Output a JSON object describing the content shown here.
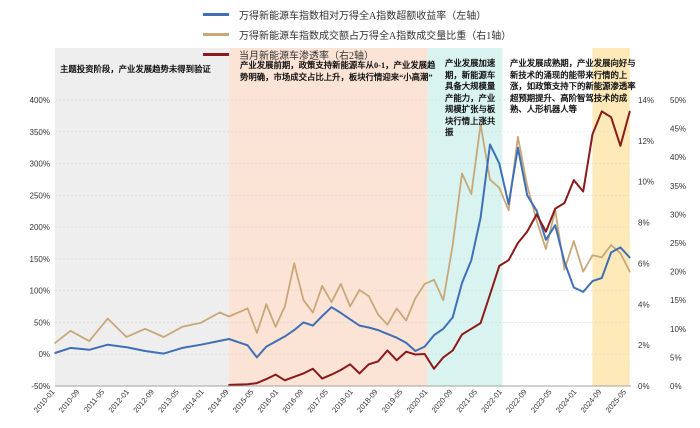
{
  "chart_data": {
    "type": "line",
    "legend": [
      {
        "name": "万得新能源车指数相对万得全A指数超额收益率（左轴）",
        "color": "#3f6fb6"
      },
      {
        "name": "万得新能源车指数成交额占万得全A指数成交量比重（右1轴）",
        "color": "#c8a878"
      },
      {
        "name": "当月新能源车渗透率（右2轴）",
        "color": "#8b1a1a"
      }
    ],
    "x_tick_labels": [
      "2010-01",
      "2010-09",
      "2011-05",
      "2012-01",
      "2012-09",
      "2013-05",
      "2014-01",
      "2014-09",
      "2015-05",
      "2016-01",
      "2016-09",
      "2017-05",
      "2018-01",
      "2018-09",
      "2019-05",
      "2020-01",
      "2020-09",
      "2021-05",
      "2022-01",
      "2022-09",
      "2023-05",
      "2024-01",
      "2024-09",
      "2025-05"
    ],
    "left_axis": {
      "ticks": [
        "-50%",
        "0%",
        "50%",
        "100%",
        "150%",
        "200%",
        "250%",
        "300%",
        "350%",
        "400%"
      ],
      "range": [
        -50,
        400
      ]
    },
    "right1_axis": {
      "ticks": [
        "0%",
        "2%",
        "4%",
        "6%",
        "8%",
        "10%",
        "12%",
        "14%"
      ],
      "range": [
        0,
        14
      ]
    },
    "right2_axis": {
      "ticks": [
        "0%",
        "5%",
        "10%",
        "15%",
        "20%",
        "25%",
        "30%",
        "35%",
        "40%",
        "45%",
        "50%"
      ],
      "range": [
        0,
        50
      ]
    },
    "phases": [
      {
        "start": "2010-01",
        "end": "2014-09",
        "color": "#eeeeee",
        "label": "主题投资阶段，产业发展趋势未得到验证"
      },
      {
        "start": "2014-09",
        "end": "2020-01",
        "color": "#fbe3d6",
        "label": "产业发展前期，政策支持新能源车从0-1，产业发展趋势明确，市场成交占比上升，板块行情迎来“小高潮”"
      },
      {
        "start": "2020-01",
        "end": "2022-01",
        "color": "#d9f3f0",
        "label": "产业发展加速期，新能源车具备大规模量产能力，产业规模扩张与板块行情上涨共振"
      },
      {
        "start": "2024-06",
        "end": "2025-06",
        "color": "#fdeab8",
        "label": "产业发展成熟期，产业发展向好与新技术的涌现的能带来行情的上涨，如政策支持下的新能源渗透率超预期提升、高阶智驾技术的成熟、人形机器人等"
      }
    ],
    "series": [
      {
        "name": "万得新能源车指数相对万得全A指数超额收益率（左轴）",
        "axis": "left",
        "x": [
          "2010-01",
          "2010-06",
          "2010-12",
          "2011-06",
          "2011-12",
          "2012-06",
          "2012-12",
          "2013-06",
          "2013-12",
          "2014-06",
          "2014-09",
          "2015-03",
          "2015-06",
          "2015-09",
          "2015-12",
          "2016-03",
          "2016-06",
          "2016-09",
          "2016-12",
          "2017-03",
          "2017-06",
          "2017-09",
          "2017-12",
          "2018-03",
          "2018-06",
          "2018-09",
          "2018-12",
          "2019-03",
          "2019-06",
          "2019-09",
          "2019-12",
          "2020-03",
          "2020-06",
          "2020-09",
          "2020-12",
          "2021-03",
          "2021-06",
          "2021-09",
          "2021-12",
          "2022-03",
          "2022-06",
          "2022-09",
          "2022-12",
          "2023-03",
          "2023-06",
          "2023-09",
          "2023-12",
          "2024-03",
          "2024-06",
          "2024-09",
          "2024-12",
          "2025-03",
          "2025-06"
        ],
        "values": [
          2,
          10,
          7,
          15,
          11,
          5,
          1,
          10,
          15,
          21,
          24,
          14,
          -5,
          12,
          20,
          28,
          38,
          50,
          45,
          60,
          74,
          65,
          55,
          45,
          42,
          38,
          32,
          26,
          18,
          5,
          12,
          30,
          40,
          58,
          112,
          148,
          215,
          330,
          300,
          236,
          325,
          250,
          226,
          180,
          203,
          145,
          105,
          98,
          115,
          120,
          160,
          168,
          152
        ]
      },
      {
        "name": "万得新能源车指数成交额占万得全A指数成交量比重（右1轴）",
        "axis": "right1",
        "x": [
          "2010-01",
          "2010-06",
          "2010-12",
          "2011-06",
          "2011-12",
          "2012-06",
          "2012-12",
          "2013-06",
          "2013-12",
          "2014-06",
          "2014-09",
          "2015-03",
          "2015-06",
          "2015-09",
          "2015-12",
          "2016-03",
          "2016-06",
          "2016-09",
          "2016-12",
          "2017-03",
          "2017-06",
          "2017-09",
          "2017-12",
          "2018-03",
          "2018-06",
          "2018-09",
          "2018-12",
          "2019-03",
          "2019-06",
          "2019-09",
          "2019-12",
          "2020-03",
          "2020-06",
          "2020-09",
          "2020-12",
          "2021-03",
          "2021-06",
          "2021-09",
          "2021-12",
          "2022-03",
          "2022-06",
          "2022-09",
          "2022-12",
          "2023-03",
          "2023-06",
          "2023-09",
          "2023-12",
          "2024-03",
          "2024-06",
          "2024-09",
          "2024-12",
          "2025-03",
          "2025-06"
        ],
        "values": [
          2.1,
          2.7,
          2.2,
          3.3,
          2.4,
          2.8,
          2.4,
          2.9,
          3.1,
          3.6,
          3.4,
          3.8,
          2.6,
          4.0,
          2.9,
          3.9,
          6.0,
          4.2,
          3.6,
          4.9,
          4.1,
          5.0,
          3.9,
          4.7,
          4.4,
          3.5,
          3.0,
          3.8,
          3.2,
          4.3,
          5.0,
          5.2,
          4.2,
          6.9,
          10.4,
          9.4,
          12.8,
          10.1,
          9.7,
          8.6,
          12.2,
          9.8,
          8.1,
          6.7,
          8.6,
          5.7,
          7.1,
          5.6,
          6.4,
          6.3,
          6.9,
          6.5,
          5.6
        ]
      },
      {
        "name": "当月新能源车渗透率（右2轴）",
        "axis": "right2",
        "x": [
          "2014-09",
          "2015-03",
          "2015-06",
          "2015-09",
          "2015-12",
          "2016-03",
          "2016-06",
          "2016-09",
          "2016-12",
          "2017-03",
          "2017-06",
          "2017-09",
          "2017-12",
          "2018-03",
          "2018-06",
          "2018-09",
          "2018-12",
          "2019-03",
          "2019-06",
          "2019-09",
          "2019-12",
          "2020-03",
          "2020-06",
          "2020-09",
          "2020-12",
          "2021-03",
          "2021-06",
          "2021-09",
          "2021-12",
          "2022-03",
          "2022-06",
          "2022-09",
          "2022-12",
          "2023-03",
          "2023-06",
          "2023-09",
          "2023-12",
          "2024-03",
          "2024-06",
          "2024-09",
          "2024-12",
          "2025-03",
          "2025-06"
        ],
        "values": [
          0.2,
          0.3,
          0.5,
          1.2,
          2.0,
          1.0,
          1.6,
          2.2,
          3.0,
          1.3,
          2.0,
          2.8,
          3.8,
          2.2,
          3.8,
          4.3,
          6.2,
          4.5,
          6.0,
          5.5,
          5.6,
          3.0,
          5.0,
          6.2,
          9.0,
          10.0,
          11.0,
          16.0,
          21.0,
          22.0,
          25.0,
          27.0,
          30.0,
          27.0,
          31.0,
          32.0,
          36.0,
          34.0,
          44.0,
          48.0,
          47.0,
          42.0,
          48.0
        ]
      }
    ]
  }
}
